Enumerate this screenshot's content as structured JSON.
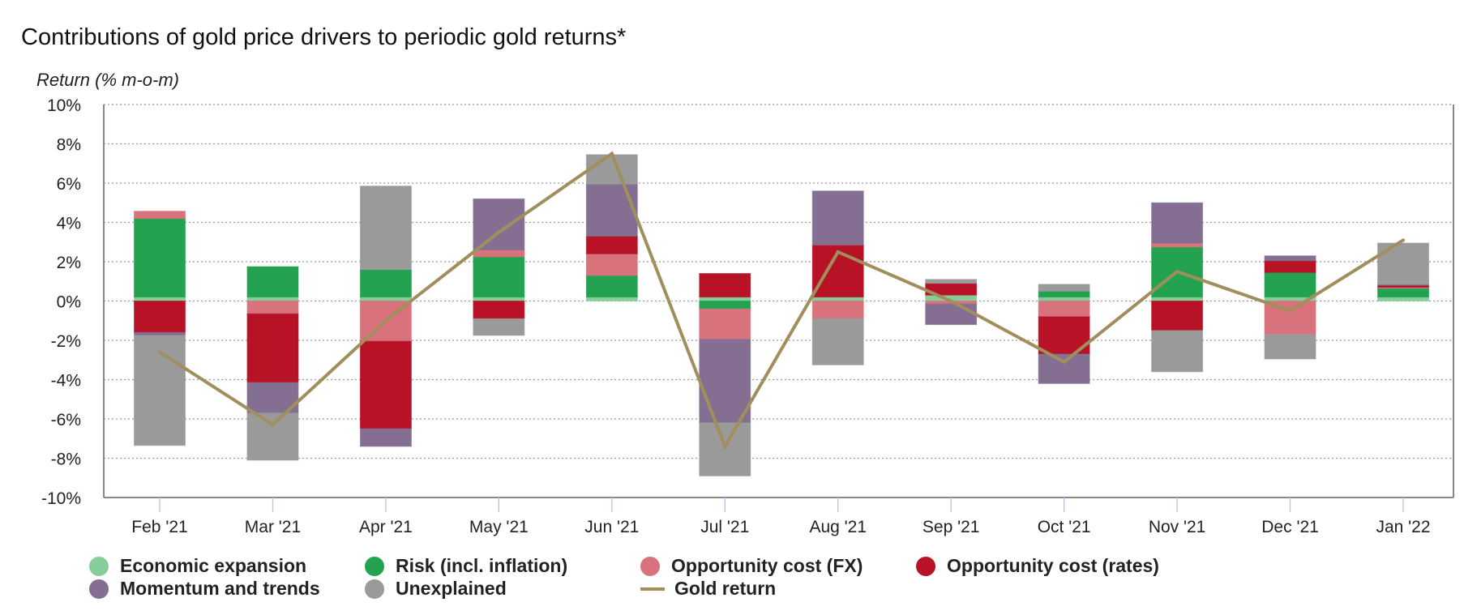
{
  "title": "Contributions of gold price drivers to periodic gold returns*",
  "colors": {
    "economic_expansion": "#86cd9a",
    "risk": "#23a34f",
    "opportunity_fx": "#d8727c",
    "opportunity_rates": "#b81227",
    "momentum": "#846f93",
    "unexplained": "#9a9a9a",
    "gold_return": "#a08f5c",
    "grid": "#999999",
    "axis": "#888888"
  },
  "chart_data": {
    "type": "bar",
    "stacked": true,
    "title": "Contributions of gold price drivers to periodic gold returns*",
    "xlabel": "",
    "ylabel": "Return (% m-o-m)",
    "ylim": [
      -10,
      10
    ],
    "yticks": [
      10,
      8,
      6,
      4,
      2,
      0,
      -2,
      -4,
      -6,
      -8,
      -10
    ],
    "ytick_labels": [
      "10%",
      "8%",
      "6%",
      "4%",
      "2%",
      "0%",
      "-2%",
      "-4%",
      "-6%",
      "-8%",
      "-10%"
    ],
    "grid": true,
    "legend_position": "bottom",
    "categories": [
      "Feb '21",
      "Mar '21",
      "Apr '21",
      "May '21",
      "Jun '21",
      "Jul '21",
      "Aug '21",
      "Sep '21",
      "Oct '21",
      "Nov '21",
      "Dec '21",
      "Jan '22"
    ],
    "series": [
      {
        "key": "economic_expansion",
        "name": "Economic expansion",
        "values": [
          0.2,
          0.2,
          0.2,
          0.2,
          0.2,
          0.2,
          0.2,
          0.3,
          0.2,
          0.2,
          0.2,
          0.2
        ]
      },
      {
        "key": "risk",
        "name": "Risk (incl. inflation)",
        "values": [
          4.0,
          1.55,
          1.4,
          2.05,
          1.1,
          -0.4,
          0.0,
          0.0,
          0.3,
          2.55,
          1.25,
          0.45
        ]
      },
      {
        "key": "opportunity_fx",
        "name": "Opportunity cost (FX)",
        "values": [
          0.37,
          -0.65,
          -2.05,
          0.35,
          1.1,
          -1.55,
          -0.9,
          -0.15,
          -0.8,
          0.2,
          -1.7,
          0.05
        ]
      },
      {
        "key": "opportunity_rates",
        "name": "Opportunity cost (rates)",
        "values": [
          -1.6,
          -3.5,
          -4.45,
          -0.9,
          0.9,
          1.2,
          2.65,
          0.6,
          -1.9,
          -1.5,
          0.6,
          0.1
        ]
      },
      {
        "key": "momentum",
        "name": "Momentum and trends",
        "values": [
          -0.15,
          -1.55,
          -0.9,
          2.6,
          2.65,
          -4.25,
          2.75,
          -1.05,
          -1.5,
          2.05,
          0.25,
          0.05
        ]
      },
      {
        "key": "unexplained",
        "name": "Unexplained",
        "values": [
          -5.6,
          -2.4,
          4.25,
          -0.85,
          1.5,
          -2.7,
          -2.35,
          0.2,
          0.35,
          -2.1,
          -1.25,
          2.1
        ]
      }
    ],
    "line": {
      "key": "gold_return",
      "name": "Gold return",
      "values": [
        -2.6,
        -6.3,
        -1.0,
        3.5,
        7.5,
        -7.4,
        2.5,
        0.0,
        -3.1,
        1.5,
        -0.5,
        3.1
      ]
    }
  },
  "legend": [
    {
      "key": "economic_expansion",
      "label": "Economic expansion",
      "kind": "dot"
    },
    {
      "key": "risk",
      "label": "Risk (incl. inflation)",
      "kind": "dot"
    },
    {
      "key": "opportunity_fx",
      "label": "Opportunity cost (FX)",
      "kind": "dot"
    },
    {
      "key": "opportunity_rates",
      "label": "Opportunity cost (rates)",
      "kind": "dot"
    },
    {
      "key": "momentum",
      "label": "Momentum and trends",
      "kind": "dot"
    },
    {
      "key": "unexplained",
      "label": "Unexplained",
      "kind": "dot"
    },
    {
      "key": "gold_return",
      "label": "Gold return",
      "kind": "line"
    }
  ]
}
